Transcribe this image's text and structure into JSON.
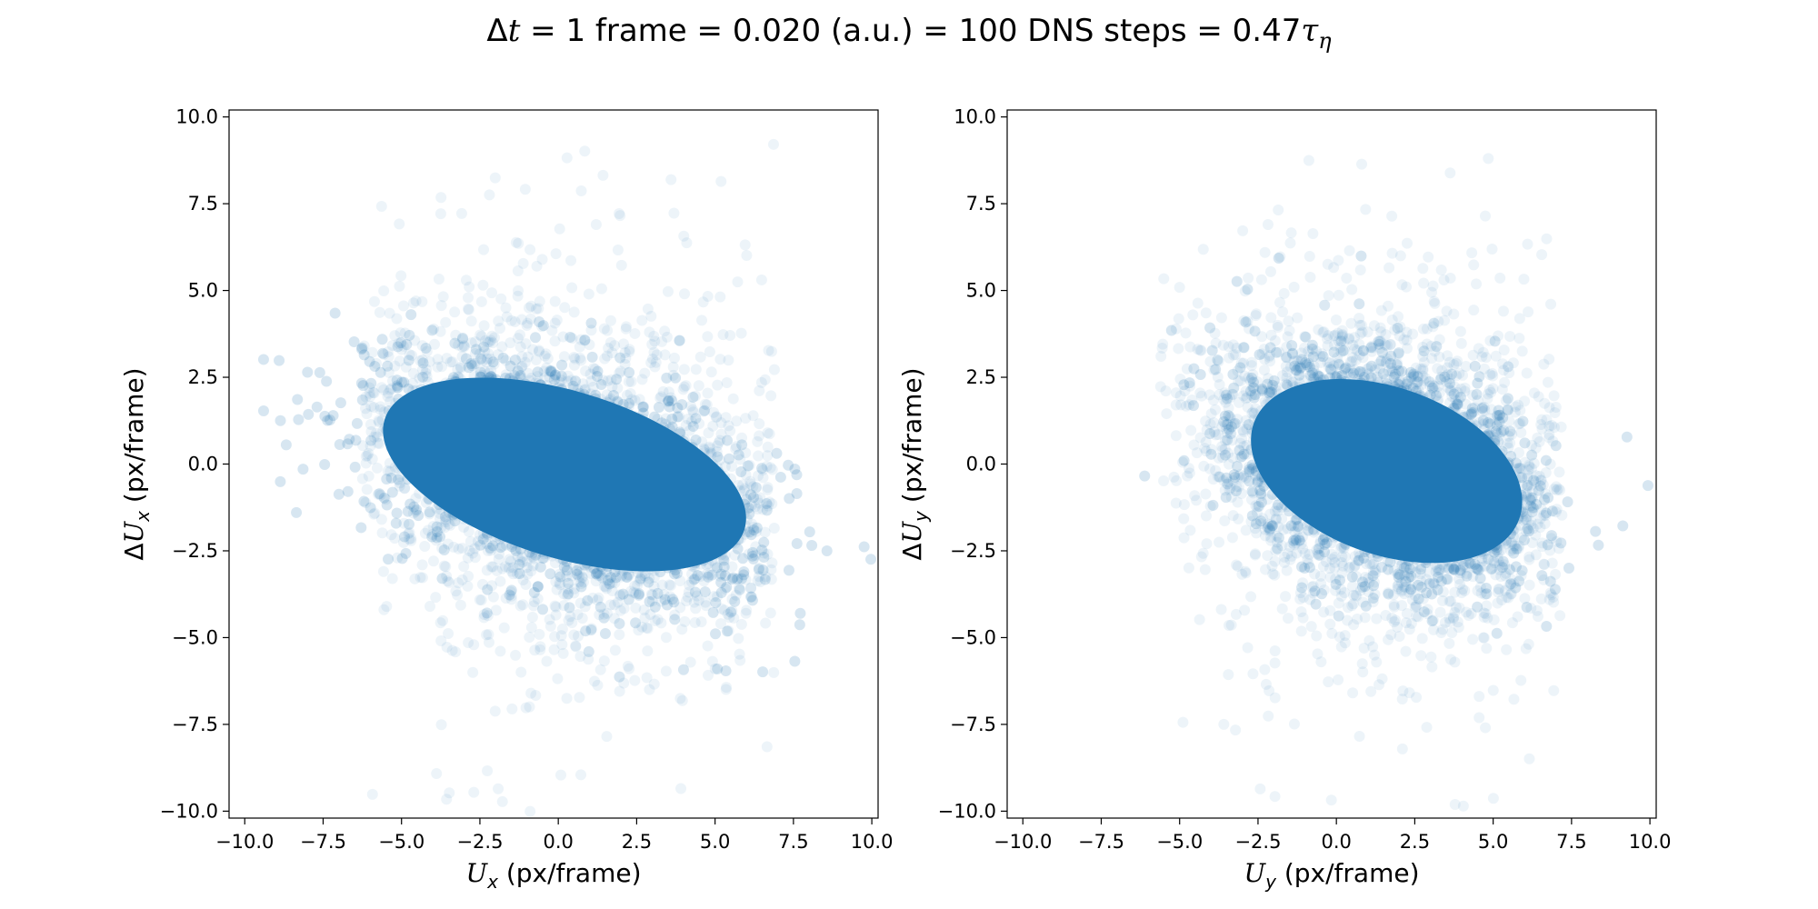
{
  "figure": {
    "title_parts": {
      "delta": "Δ",
      "t": "t",
      "rest": " = 1 frame  = 0.020 (a.u.)  = 100 DNS steps = 0.47",
      "tau": "τ",
      "eta": "η"
    }
  },
  "chart_data": [
    {
      "type": "scatter",
      "title": "",
      "xlabel": "U_x (px/frame)",
      "ylabel": "ΔU_x (px/frame)",
      "xlim": [
        -10.5,
        10.2
      ],
      "ylim": [
        -10.2,
        10.2
      ],
      "xticks": [
        -10.0,
        -7.5,
        -5.0,
        -2.5,
        0.0,
        2.5,
        5.0,
        7.5,
        10.0
      ],
      "yticks": [
        -10.0,
        -7.5,
        -5.0,
        -2.5,
        0.0,
        2.5,
        5.0,
        7.5,
        10.0
      ],
      "xtick_labels": [
        "−10.0",
        "−7.5",
        "−5.0",
        "−2.5",
        "0.0",
        "2.5",
        "5.0",
        "7.5",
        "10.0"
      ],
      "ytick_labels": [
        "−10.0",
        "−7.5",
        "−5.0",
        "−2.5",
        "0.0",
        "2.5",
        "5.0",
        "7.5",
        "10.0"
      ],
      "color": "#1f77b4",
      "marker_alpha": 0.06,
      "grid": false,
      "dense_core": {
        "center": [
          0.2,
          -0.3
        ],
        "semi_axis_major": 6.0,
        "semi_axis_minor": 2.4,
        "tilt_deg": -17
      },
      "halo": {
        "center": [
          0.2,
          -0.3
        ],
        "semi_axis_major": 7.0,
        "semi_axis_minor": 3.6,
        "tilt_deg": -17
      },
      "x_extent": [
        -6.3,
        6.9
      ],
      "y_extent": [
        -10.0,
        10.0
      ],
      "n_points_approx": 200000
    },
    {
      "type": "scatter",
      "title": "",
      "xlabel": "U_y (px/frame)",
      "ylabel": "ΔU_y (px/frame)",
      "xlim": [
        -10.5,
        10.2
      ],
      "ylim": [
        -10.2,
        10.2
      ],
      "xticks": [
        -10.0,
        -7.5,
        -5.0,
        -2.5,
        0.0,
        2.5,
        5.0,
        7.5,
        10.0
      ],
      "yticks": [
        -10.0,
        -7.5,
        -5.0,
        -2.5,
        0.0,
        2.5,
        5.0,
        7.5,
        10.0
      ],
      "xtick_labels": [
        "−10.0",
        "−7.5",
        "−5.0",
        "−2.5",
        "0.0",
        "2.5",
        "5.0",
        "7.5",
        "10.0"
      ],
      "ytick_labels": [
        "−10.0",
        "−7.5",
        "−5.0",
        "−2.5",
        "0.0",
        "2.5",
        "5.0",
        "7.5",
        "10.0"
      ],
      "color": "#1f77b4",
      "marker_alpha": 0.06,
      "grid": false,
      "dense_core": {
        "center": [
          1.6,
          -0.2
        ],
        "semi_axis_major": 4.5,
        "semi_axis_minor": 2.4,
        "tilt_deg": -20
      },
      "halo": {
        "center": [
          1.6,
          -0.2
        ],
        "semi_axis_major": 5.6,
        "semi_axis_minor": 3.6,
        "tilt_deg": -20
      },
      "x_extent": [
        -5.8,
        7.2
      ],
      "y_extent": [
        -10.0,
        10.0
      ],
      "n_points_approx": 200000
    }
  ]
}
